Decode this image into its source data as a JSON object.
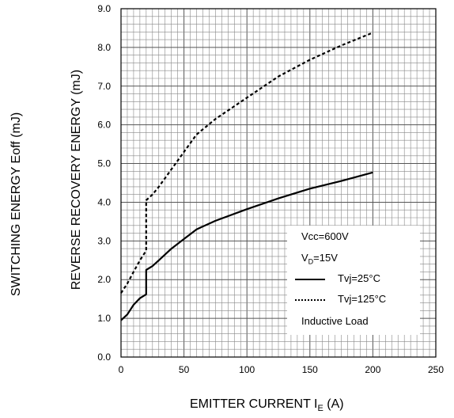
{
  "chart_data": {
    "type": "line",
    "title": "",
    "xlabel": "EMITTER CURRENT I",
    "xlabel_sub": "E",
    "xlabel_unit": " (A)",
    "ylabels": [
      "SWITCHING ENERGY Eoff (mJ)",
      "REVERSE RECOVERY ENERGY (mJ)"
    ],
    "xlim": [
      0,
      250
    ],
    "ylim": [
      0,
      9
    ],
    "x_ticks": [
      "0",
      "50",
      "100",
      "150",
      "200",
      "250"
    ],
    "y_ticks": [
      "0.0",
      "1.0",
      "2.0",
      "3.0",
      "4.0",
      "5.0",
      "6.0",
      "7.0",
      "8.0",
      "9.0"
    ],
    "grid": true,
    "legend_position": "bottom-right",
    "conditions": [
      "Vcc=600V",
      "V",
      "D",
      "=15V"
    ],
    "series": [
      {
        "name": "Tvj=25°C",
        "style": "solid",
        "x": [
          0,
          5,
          10,
          15,
          20,
          20,
          25,
          30,
          40,
          50,
          60,
          75,
          100,
          125,
          150,
          175,
          200
        ],
        "y": [
          0.95,
          1.1,
          1.35,
          1.52,
          1.62,
          2.25,
          2.35,
          2.5,
          2.8,
          3.05,
          3.3,
          3.52,
          3.82,
          4.1,
          4.35,
          4.55,
          4.77
        ]
      },
      {
        "name": "Tvj=125°C",
        "style": "dotted",
        "x": [
          0,
          5,
          10,
          15,
          20,
          20,
          25,
          30,
          40,
          50,
          60,
          75,
          100,
          125,
          150,
          175,
          200
        ],
        "y": [
          1.65,
          1.9,
          2.2,
          2.5,
          2.75,
          4.05,
          4.2,
          4.4,
          4.85,
          5.3,
          5.75,
          6.15,
          6.7,
          7.25,
          7.68,
          8.05,
          8.38
        ]
      }
    ],
    "legend_note": "Inductive Load"
  }
}
